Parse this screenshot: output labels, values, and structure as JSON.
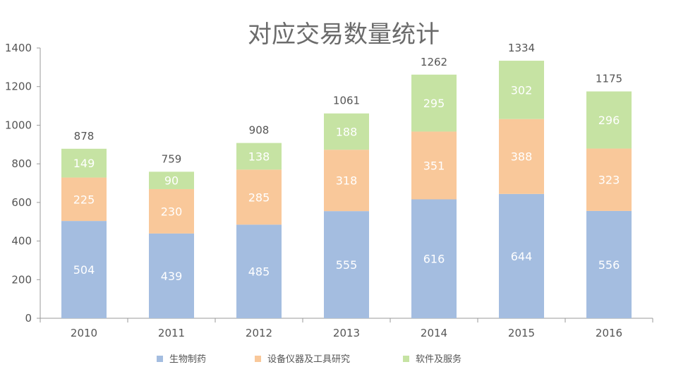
{
  "chart_data": {
    "type": "bar",
    "stacked": true,
    "title": "对应交易数量统计",
    "categories": [
      "2010",
      "2011",
      "2012",
      "2013",
      "2014",
      "2015",
      "2016"
    ],
    "series": [
      {
        "name": "生物制药",
        "color": "#a4bde0",
        "values": [
          504,
          439,
          485,
          555,
          616,
          644,
          556
        ]
      },
      {
        "name": "设备仪器及工具研究",
        "color": "#f9c89a",
        "values": [
          225,
          230,
          285,
          318,
          351,
          388,
          323
        ]
      },
      {
        "name": "软件及服务",
        "color": "#c6e3a3",
        "values": [
          149,
          90,
          138,
          188,
          295,
          302,
          296
        ]
      }
    ],
    "totals": [
      878,
      759,
      908,
      1061,
      1262,
      1334,
      1175
    ],
    "ylim": [
      0,
      1400
    ],
    "yticks": [
      0,
      200,
      400,
      600,
      800,
      1000,
      1200,
      1400
    ],
    "grid": false,
    "legend_position": "bottom"
  }
}
